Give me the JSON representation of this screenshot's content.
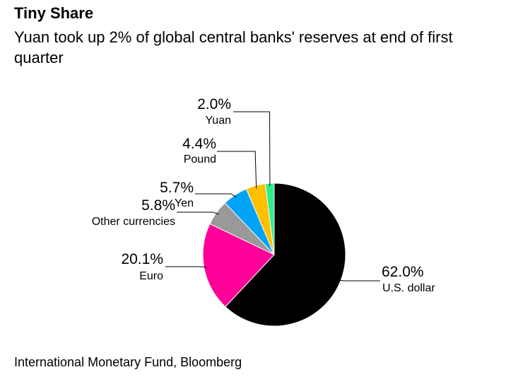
{
  "chart_data": {
    "type": "pie",
    "title": "Tiny Share",
    "subtitle": "Yuan took up 2% of global central banks' reserves at end of first quarter",
    "source": "International Monetary Fund, Bloomberg",
    "slices": [
      {
        "name": "U.S. dollar",
        "value": 62.0,
        "label": "62.0%",
        "color": "#000000"
      },
      {
        "name": "Euro",
        "value": 20.1,
        "label": "20.1%",
        "color": "#ff0099"
      },
      {
        "name": "Other currencies",
        "value": 5.8,
        "label": "5.8%",
        "color": "#999999"
      },
      {
        "name": "Yen",
        "value": 5.7,
        "label": "5.7%",
        "color": "#00a3f5"
      },
      {
        "name": "Pound",
        "value": 4.4,
        "label": "4.4%",
        "color": "#ffc000"
      },
      {
        "name": "Yuan",
        "value": 2.0,
        "label": "2.0%",
        "color": "#33ee88"
      }
    ]
  }
}
